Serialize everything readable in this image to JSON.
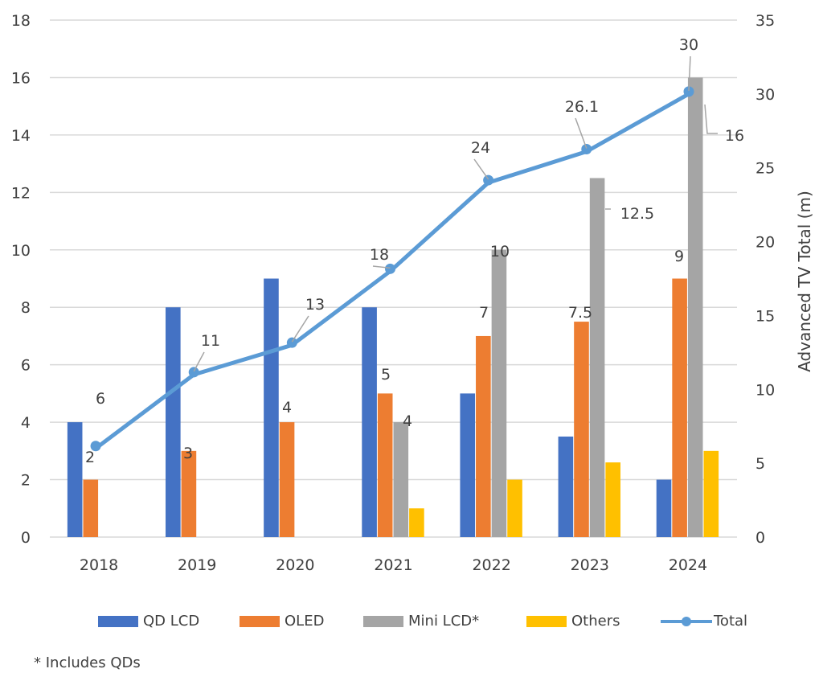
{
  "chart_data": {
    "type": "bar",
    "categories": [
      "2018",
      "2019",
      "2020",
      "2021",
      "2022",
      "2023",
      "2024"
    ],
    "series": [
      {
        "name": "QD LCD",
        "type": "bar",
        "axis": "left",
        "color": "#4472C4",
        "values": [
          4,
          8,
          9,
          8,
          5,
          3.5,
          2
        ]
      },
      {
        "name": "OLED",
        "type": "bar",
        "axis": "left",
        "color": "#ED7D31",
        "values": [
          2,
          3,
          4,
          5,
          7,
          7.5,
          9
        ],
        "labels": [
          "2",
          "3",
          "4",
          "5",
          "7",
          "7.5",
          "9"
        ]
      },
      {
        "name": "Mini LCD*",
        "type": "bar",
        "axis": "left",
        "color": "#A5A5A5",
        "values": [
          0,
          0,
          0,
          4,
          10,
          12.5,
          16
        ],
        "labels": [
          null,
          null,
          null,
          "4",
          "10",
          "12.5",
          "16"
        ]
      },
      {
        "name": "Others",
        "type": "bar",
        "axis": "left",
        "color": "#FFC000",
        "values": [
          0,
          0,
          0,
          1,
          2,
          2.6,
          3
        ]
      },
      {
        "name": "Total",
        "type": "line",
        "axis": "right",
        "color": "#5B9BD5",
        "values": [
          6,
          11,
          13,
          18,
          24,
          26.1,
          30
        ],
        "labels": [
          "6",
          "11",
          "13",
          "18",
          "24",
          "26.1",
          "30"
        ]
      }
    ],
    "y_left": {
      "range": [
        0,
        18
      ],
      "ticks": [
        "0",
        "2",
        "4",
        "6",
        "8",
        "10",
        "12",
        "14",
        "16",
        "18"
      ],
      "label": ""
    },
    "y_right": {
      "range": [
        0,
        35
      ],
      "ticks": [
        "0",
        "5",
        "10",
        "15",
        "20",
        "25",
        "30",
        "35"
      ],
      "label": "Advanced TV Total (m)"
    },
    "grid": true,
    "legend_placement": "bottom",
    "footnote": "* Includes QDs"
  }
}
